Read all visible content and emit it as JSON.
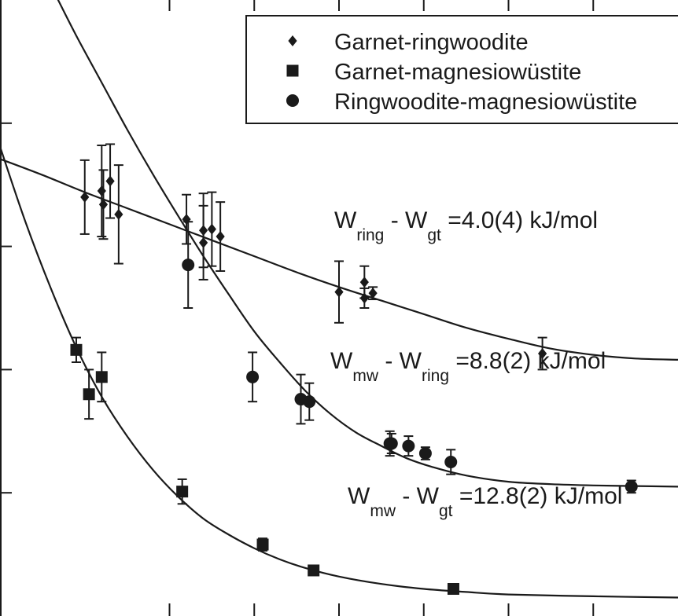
{
  "chart_data": {
    "type": "scatter",
    "title": "",
    "xlabel": "",
    "ylabel": "",
    "xlim": [
      0,
      8
    ],
    "ylim": [
      0,
      5
    ],
    "grid": false,
    "legend_position": "top-right",
    "series": [
      {
        "name": "Garnet-ringwoodite",
        "marker": "diamond",
        "points": [
          {
            "x": 1.0,
            "y": 3.4,
            "err": 0.3
          },
          {
            "x": 1.2,
            "y": 3.45,
            "err": 0.37
          },
          {
            "x": 1.22,
            "y": 3.34,
            "err": 0.28
          },
          {
            "x": 1.3,
            "y": 3.53,
            "err": 0.3
          },
          {
            "x": 1.4,
            "y": 3.26,
            "err": 0.4
          },
          {
            "x": 2.2,
            "y": 3.22,
            "err": 0.2
          },
          {
            "x": 2.4,
            "y": 3.03,
            "err": 0.3
          },
          {
            "x": 2.4,
            "y": 3.13,
            "err": 0.3
          },
          {
            "x": 2.5,
            "y": 3.14,
            "err": 0.3
          },
          {
            "x": 2.6,
            "y": 3.08,
            "err": 0.28
          },
          {
            "x": 4.0,
            "y": 2.63,
            "err": 0.25
          },
          {
            "x": 4.3,
            "y": 2.71,
            "err": 0.13
          },
          {
            "x": 4.3,
            "y": 2.58,
            "err": 0.08
          },
          {
            "x": 4.4,
            "y": 2.62,
            "err": 0.05
          },
          {
            "x": 6.4,
            "y": 2.13,
            "err": 0.13
          }
        ]
      },
      {
        "name": "Garnet-magnesiowüstite",
        "marker": "square",
        "points": [
          {
            "x": 0.9,
            "y": 2.16,
            "err": 0.1
          },
          {
            "x": 1.05,
            "y": 1.8,
            "err": 0.2
          },
          {
            "x": 1.2,
            "y": 1.94,
            "err": 0.2
          },
          {
            "x": 2.15,
            "y": 1.01,
            "err": 0.1
          },
          {
            "x": 3.1,
            "y": 0.58,
            "err": 0.05
          },
          {
            "x": 3.7,
            "y": 0.37,
            "err": 0.03
          },
          {
            "x": 5.35,
            "y": 0.22,
            "err": 0.03
          }
        ]
      },
      {
        "name": "Ringwoodite-magnesiowüstite",
        "marker": "circle",
        "points": [
          {
            "x": 2.22,
            "y": 2.85,
            "err": 0.35
          },
          {
            "x": 2.98,
            "y": 1.94,
            "err": 0.2
          },
          {
            "x": 3.55,
            "y": 1.76,
            "err": 0.2
          },
          {
            "x": 3.65,
            "y": 1.74,
            "err": 0.15
          },
          {
            "x": 4.6,
            "y": 1.4,
            "err": 0.1
          },
          {
            "x": 4.62,
            "y": 1.4,
            "err": 0.08
          },
          {
            "x": 4.82,
            "y": 1.38,
            "err": 0.08
          },
          {
            "x": 5.02,
            "y": 1.32,
            "err": 0.05
          },
          {
            "x": 5.32,
            "y": 1.25,
            "err": 0.1
          },
          {
            "x": 7.45,
            "y": 1.05,
            "err": 0.05
          }
        ]
      }
    ],
    "fits": [
      {
        "label_parts": {
          "w1": "W",
          "sub1": "ring",
          "mid": "- W",
          "sub2": "gt",
          "value": "=4.0(4) kJ/mol"
        },
        "curve_points": [
          [
            0.0,
            3.71
          ],
          [
            0.5,
            3.58
          ],
          [
            1.0,
            3.44
          ],
          [
            1.5,
            3.31
          ],
          [
            2.0,
            3.18
          ],
          [
            2.5,
            3.05
          ],
          [
            3.0,
            2.92
          ],
          [
            3.5,
            2.79
          ],
          [
            4.0,
            2.67
          ],
          [
            4.5,
            2.56
          ],
          [
            5.0,
            2.45
          ],
          [
            5.5,
            2.34
          ],
          [
            6.0,
            2.25
          ],
          [
            6.5,
            2.17
          ],
          [
            7.0,
            2.12
          ],
          [
            7.5,
            2.09
          ],
          [
            8.0,
            2.08
          ]
        ]
      },
      {
        "label_parts": {
          "w1": "W",
          "sub1": "mw",
          "mid": "- W",
          "sub2": "ring",
          "value": "=8.8(2) kJ/mol"
        },
        "curve_points": [
          [
            0.65,
            5.05
          ],
          [
            0.9,
            4.71
          ],
          [
            1.2,
            4.33
          ],
          [
            1.5,
            3.95
          ],
          [
            1.8,
            3.59
          ],
          [
            2.1,
            3.25
          ],
          [
            2.4,
            2.92
          ],
          [
            2.7,
            2.61
          ],
          [
            3.0,
            2.31
          ],
          [
            3.3,
            2.06
          ],
          [
            3.6,
            1.83
          ],
          [
            3.9,
            1.64
          ],
          [
            4.2,
            1.49
          ],
          [
            4.5,
            1.38
          ],
          [
            4.8,
            1.28
          ],
          [
            5.1,
            1.21
          ],
          [
            5.5,
            1.14
          ],
          [
            6.0,
            1.09
          ],
          [
            6.5,
            1.07
          ],
          [
            7.0,
            1.06
          ],
          [
            7.5,
            1.055
          ],
          [
            8.0,
            1.05
          ]
        ]
      },
      {
        "label_parts": {
          "w1": "W",
          "sub1": "mw",
          "mid": "- W",
          "sub2": "gt",
          "value": "=12.8(2) kJ/mol"
        },
        "curve_points": [
          [
            0.0,
            3.81
          ],
          [
            0.3,
            3.2
          ],
          [
            0.6,
            2.66
          ],
          [
            0.9,
            2.18
          ],
          [
            1.2,
            1.78
          ],
          [
            1.5,
            1.46
          ],
          [
            1.8,
            1.19
          ],
          [
            2.1,
            0.97
          ],
          [
            2.4,
            0.79
          ],
          [
            2.7,
            0.66
          ],
          [
            3.0,
            0.55
          ],
          [
            3.3,
            0.46
          ],
          [
            3.6,
            0.39
          ],
          [
            4.0,
            0.32
          ],
          [
            4.5,
            0.26
          ],
          [
            5.0,
            0.22
          ],
          [
            5.5,
            0.195
          ],
          [
            6.0,
            0.175
          ],
          [
            7.0,
            0.16
          ],
          [
            8.0,
            0.15
          ]
        ]
      }
    ]
  }
}
